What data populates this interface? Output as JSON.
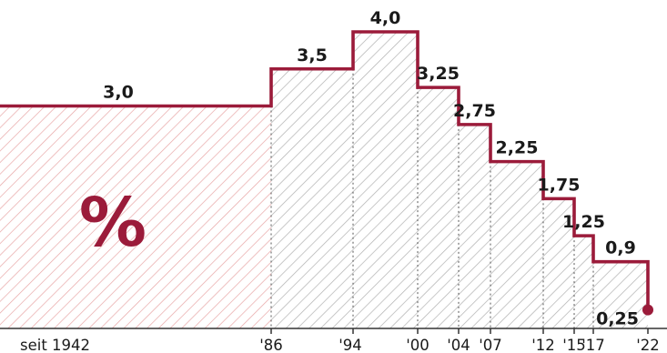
{
  "chart_data": {
    "type": "step-area",
    "unit_label": "%",
    "x_tick_labels": [
      "seit 1942",
      "'86",
      "'94",
      "'00",
      "'04",
      "'07",
      "'12",
      "'15",
      "'17",
      "'22"
    ],
    "steps": [
      {
        "start": "seit 1942",
        "end": "'86",
        "value": 3.0,
        "label": "3,0"
      },
      {
        "start": "'86",
        "end": "'94",
        "value": 3.5,
        "label": "3,5"
      },
      {
        "start": "'94",
        "end": "'00",
        "value": 4.0,
        "label": "4,0"
      },
      {
        "start": "'00",
        "end": "'04",
        "value": 3.25,
        "label": "3,25"
      },
      {
        "start": "'04",
        "end": "'07",
        "value": 2.75,
        "label": "2,75"
      },
      {
        "start": "'07",
        "end": "'12",
        "value": 2.25,
        "label": "2,25"
      },
      {
        "start": "'12",
        "end": "'15",
        "value": 1.75,
        "label": "1,75"
      },
      {
        "start": "'15",
        "end": "'17",
        "value": 1.25,
        "label": "1,25"
      },
      {
        "start": "'17",
        "end": "'22",
        "value": 0.9,
        "label": "0,9"
      }
    ],
    "end_point": {
      "x": "'22",
      "value": 0.25,
      "label": "0,25"
    },
    "colors": {
      "line": "#9b1b3a",
      "hatch_red": "#e8a6a6",
      "hatch_gray": "#b0b0b0",
      "axis": "#333333",
      "text": "#1a1a1a"
    }
  }
}
